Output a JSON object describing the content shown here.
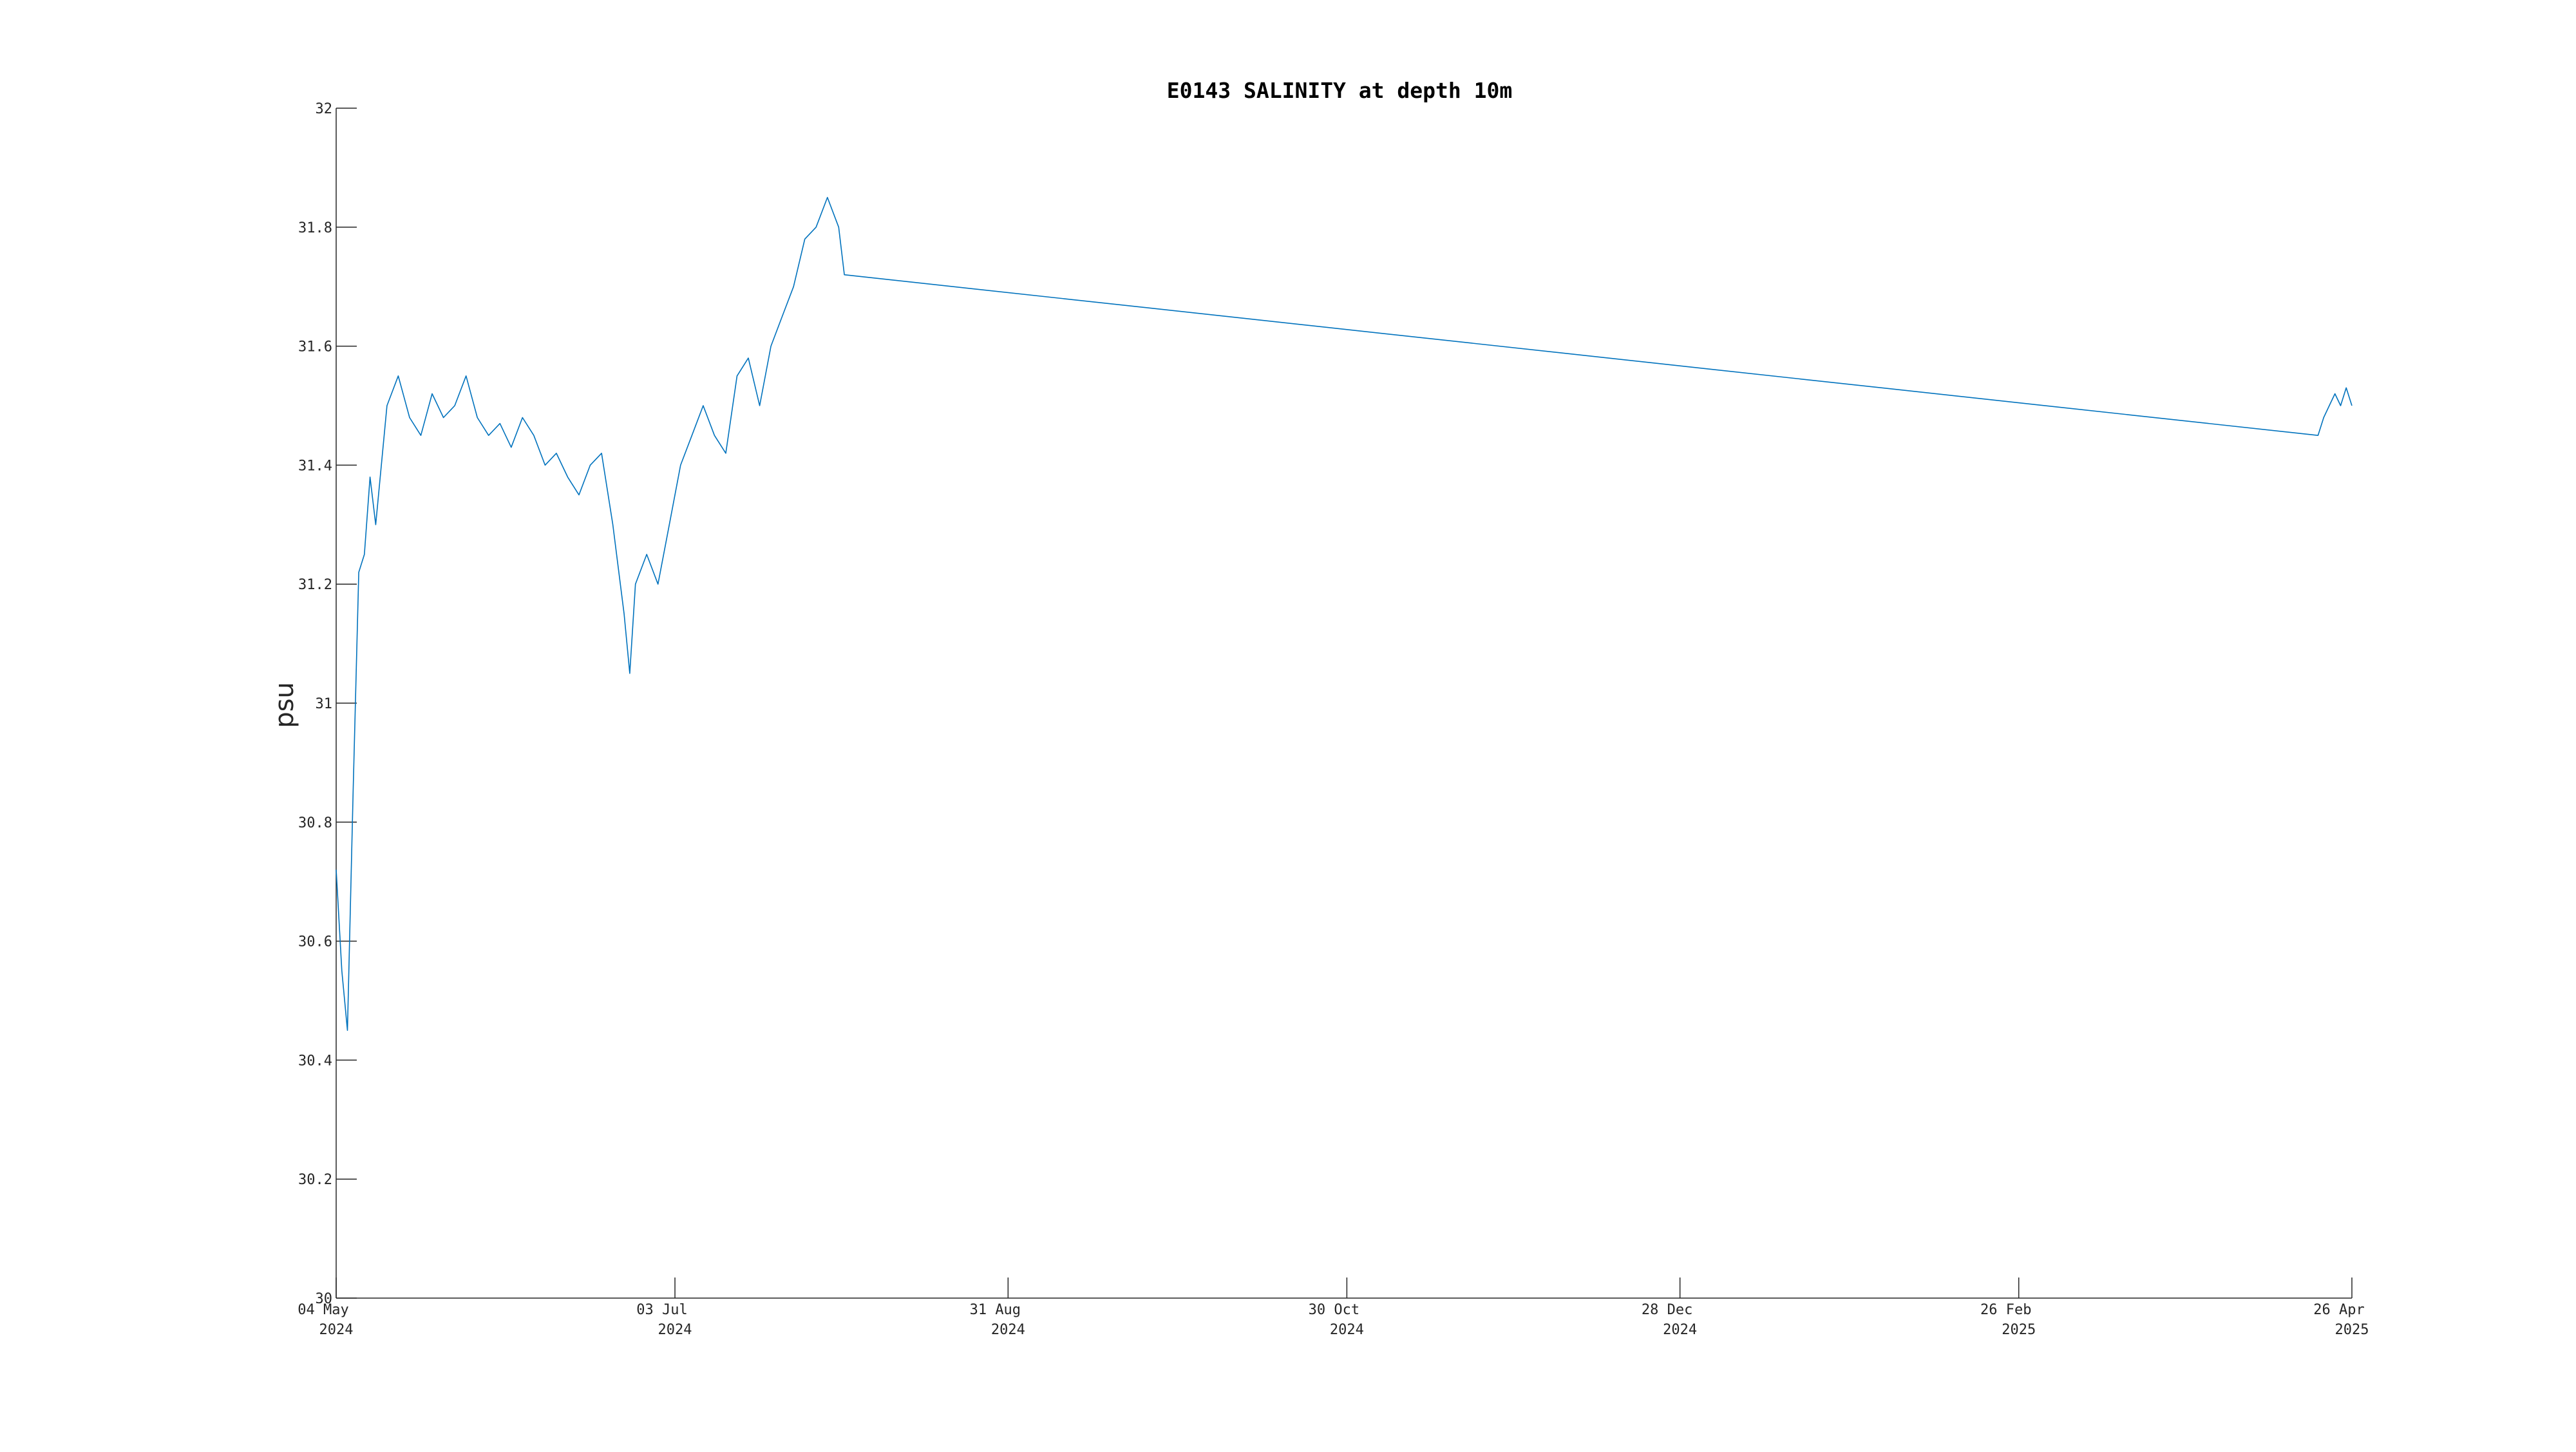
{
  "chart_data": {
    "type": "line",
    "title": "E0143 SALINITY at depth 10m",
    "ylabel": "psu",
    "xlabel": "",
    "ylim": [
      30,
      32
    ],
    "xlim": [
      "2024-05-04",
      "2025-04-26"
    ],
    "grid": false,
    "line_color": "#0072BD",
    "ytick_labels": [
      "30",
      "30.2",
      "30.4",
      "30.6",
      "30.8",
      "31",
      "31.2",
      "31.4",
      "31.6",
      "31.8",
      "32"
    ],
    "xticks": [
      {
        "date": "2024-05-04",
        "label_day": "04 May",
        "label_year": "2024"
      },
      {
        "date": "2024-07-03",
        "label_day": "03 Jul",
        "label_year": "2024"
      },
      {
        "date": "2024-08-31",
        "label_day": "31 Aug",
        "label_year": "2024"
      },
      {
        "date": "2024-10-30",
        "label_day": "30 Oct",
        "label_year": "2024"
      },
      {
        "date": "2024-12-28",
        "label_day": "28 Dec",
        "label_year": "2024"
      },
      {
        "date": "2025-02-26",
        "label_day": "26 Feb",
        "label_year": "2025"
      },
      {
        "date": "2025-04-26",
        "label_day": "26 Apr",
        "label_year": "2025"
      }
    ],
    "series": [
      {
        "points": [
          [
            "2024-05-04",
            30.72
          ],
          [
            "2024-05-05",
            30.55
          ],
          [
            "2024-05-06",
            30.45
          ],
          [
            "2024-05-07",
            30.85
          ],
          [
            "2024-05-08",
            31.22
          ],
          [
            "2024-05-09",
            31.25
          ],
          [
            "2024-05-10",
            31.38
          ],
          [
            "2024-05-11",
            31.3
          ],
          [
            "2024-05-13",
            31.5
          ],
          [
            "2024-05-15",
            31.55
          ],
          [
            "2024-05-17",
            31.48
          ],
          [
            "2024-05-19",
            31.45
          ],
          [
            "2024-05-21",
            31.52
          ],
          [
            "2024-05-23",
            31.48
          ],
          [
            "2024-05-25",
            31.5
          ],
          [
            "2024-05-27",
            31.55
          ],
          [
            "2024-05-29",
            31.48
          ],
          [
            "2024-05-31",
            31.45
          ],
          [
            "2024-06-02",
            31.47
          ],
          [
            "2024-06-04",
            31.43
          ],
          [
            "2024-06-06",
            31.48
          ],
          [
            "2024-06-08",
            31.45
          ],
          [
            "2024-06-10",
            31.4
          ],
          [
            "2024-06-12",
            31.42
          ],
          [
            "2024-06-14",
            31.38
          ],
          [
            "2024-06-16",
            31.35
          ],
          [
            "2024-06-18",
            31.4
          ],
          [
            "2024-06-20",
            31.42
          ],
          [
            "2024-06-22",
            31.3
          ],
          [
            "2024-06-24",
            31.15
          ],
          [
            "2024-06-25",
            31.05
          ],
          [
            "2024-06-26",
            31.2
          ],
          [
            "2024-06-28",
            31.25
          ],
          [
            "2024-06-30",
            31.2
          ],
          [
            "2024-07-02",
            31.3
          ],
          [
            "2024-07-04",
            31.4
          ],
          [
            "2024-07-06",
            31.45
          ],
          [
            "2024-07-08",
            31.5
          ],
          [
            "2024-07-10",
            31.45
          ],
          [
            "2024-07-12",
            31.42
          ],
          [
            "2024-07-14",
            31.55
          ],
          [
            "2024-07-16",
            31.58
          ],
          [
            "2024-07-18",
            31.5
          ],
          [
            "2024-07-20",
            31.6
          ],
          [
            "2024-07-22",
            31.65
          ],
          [
            "2024-07-24",
            31.7
          ],
          [
            "2024-07-26",
            31.78
          ],
          [
            "2024-07-28",
            31.8
          ],
          [
            "2024-07-30",
            31.85
          ],
          [
            "2024-08-01",
            31.8
          ],
          [
            "2024-08-02",
            31.72
          ],
          [
            "2025-04-20",
            31.45
          ],
          [
            "2025-04-21",
            31.48
          ],
          [
            "2025-04-22",
            31.5
          ],
          [
            "2025-04-23",
            31.52
          ],
          [
            "2025-04-24",
            31.5
          ],
          [
            "2025-04-25",
            31.53
          ],
          [
            "2025-04-26",
            31.5
          ]
        ]
      }
    ]
  }
}
